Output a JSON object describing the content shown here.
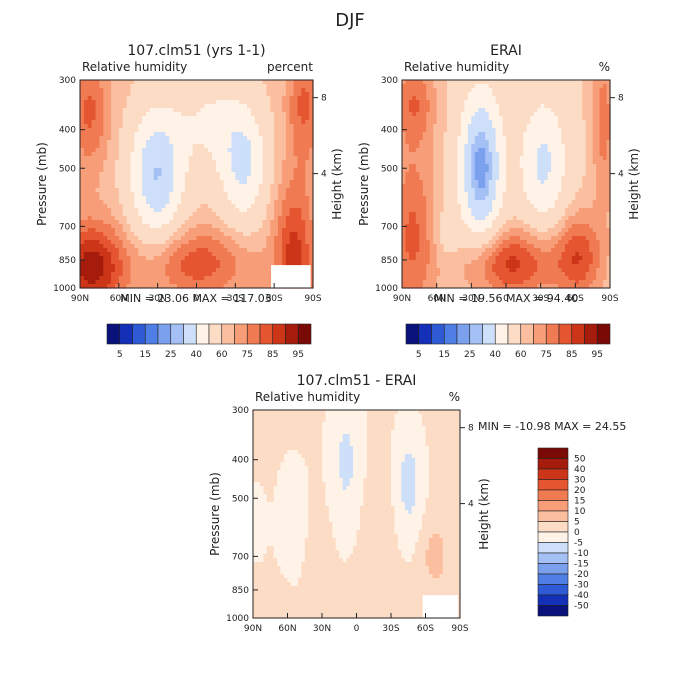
{
  "figure": {
    "title": "DJF"
  },
  "chart_data": [
    {
      "type": "heatmap",
      "title": "107.clm51 (yrs 1-1)",
      "subtitle_left": "Relative humidity",
      "subtitle_right": "percent",
      "xlabel": "",
      "ylabel": "Pressure (mb)",
      "ylabel_right": "Height (km)",
      "x_ticks": [
        "90N",
        "60N",
        "30N",
        "0",
        "30S",
        "60S",
        "90S"
      ],
      "y_ticks": [
        "300",
        "400",
        "500",
        "700",
        "850",
        "1000"
      ],
      "height_ticks": [
        "8",
        "4"
      ],
      "stats": {
        "min_label": "MIN =",
        "min": "23.06",
        "max_label": "MAX =",
        "max": "117.03"
      },
      "colorbar": {
        "labels": [
          "5",
          "15",
          "25",
          "40",
          "60",
          "75",
          "85",
          "95"
        ],
        "colors": [
          "#08127a",
          "#1530b8",
          "#2e5ad6",
          "#4f7fe6",
          "#7aa0ee",
          "#a4c0f4",
          "#cddff9",
          "#fff3e8",
          "#fddcc6",
          "#fbbfa0",
          "#f79d78",
          "#f07a52",
          "#e55530",
          "#cc3518",
          "#a51c0c",
          "#7a0a05"
        ]
      },
      "peaks": [
        {
          "lat": -75,
          "p": 950,
          "value": 117.03,
          "label": "max"
        },
        {
          "lat": 30,
          "p": 500,
          "value": 23.06,
          "label": "min"
        }
      ]
    },
    {
      "type": "heatmap",
      "title": "ERAI",
      "subtitle_left": "Relative humidity",
      "subtitle_right": "%",
      "xlabel": "",
      "ylabel": "Pressure (mb)",
      "ylabel_right": "Height (km)",
      "x_ticks": [
        "90N",
        "60N",
        "30N",
        "0",
        "30S",
        "60S",
        "90S"
      ],
      "y_ticks": [
        "300",
        "400",
        "500",
        "700",
        "850",
        "1000"
      ],
      "height_ticks": [
        "8",
        "4"
      ],
      "stats": {
        "min_label": "MIN =",
        "min": "19.56",
        "max_label": "MAX =",
        "max": "94.40"
      },
      "colorbar": {
        "labels": [
          "5",
          "15",
          "25",
          "40",
          "60",
          "75",
          "85",
          "95"
        ],
        "colors": [
          "#08127a",
          "#1530b8",
          "#2e5ad6",
          "#4f7fe6",
          "#7aa0ee",
          "#a4c0f4",
          "#cddff9",
          "#fff3e8",
          "#fddcc6",
          "#fbbfa0",
          "#f79d78",
          "#f07a52",
          "#e55530",
          "#cc3518",
          "#a51c0c",
          "#7a0a05"
        ]
      },
      "peaks": [
        {
          "lat": -65,
          "p": 900,
          "value": 94.4,
          "label": "max"
        },
        {
          "lat": 25,
          "p": 500,
          "value": 19.56,
          "label": "min"
        }
      ]
    },
    {
      "type": "heatmap",
      "title": "107.clm51 - ERAI",
      "subtitle_left": "Relative humidity",
      "subtitle_right": "%",
      "xlabel": "",
      "ylabel": "Pressure (mb)",
      "ylabel_right": "Height (km)",
      "x_ticks": [
        "90N",
        "60N",
        "30N",
        "0",
        "30S",
        "60S",
        "90S"
      ],
      "y_ticks": [
        "300",
        "400",
        "500",
        "700",
        "850",
        "1000"
      ],
      "height_ticks": [
        "8",
        "4"
      ],
      "stats": {
        "min_label": "MIN =",
        "min": "-10.98",
        "max_label": "MAX =",
        "max": "24.55"
      },
      "colorbar": {
        "labels": [
          "50",
          "40",
          "30",
          "20",
          "15",
          "10",
          "5",
          "0",
          "-5",
          "-10",
          "-15",
          "-20",
          "-30",
          "-40",
          "-50"
        ],
        "colors": [
          "#7a0a05",
          "#a51c0c",
          "#cc3518",
          "#e55530",
          "#f07a52",
          "#f79d78",
          "#fbbfa0",
          "#fddcc6",
          "#fff3e8",
          "#cddff9",
          "#a4c0f4",
          "#7aa0ee",
          "#4f7fe6",
          "#2e5ad6",
          "#1530b8",
          "#08127a"
        ]
      },
      "peaks": [
        {
          "lat": -60,
          "p": 720,
          "value": 24.55,
          "label": "max"
        },
        {
          "lat": -45,
          "p": 450,
          "value": -10.98,
          "label": "min"
        }
      ]
    }
  ]
}
